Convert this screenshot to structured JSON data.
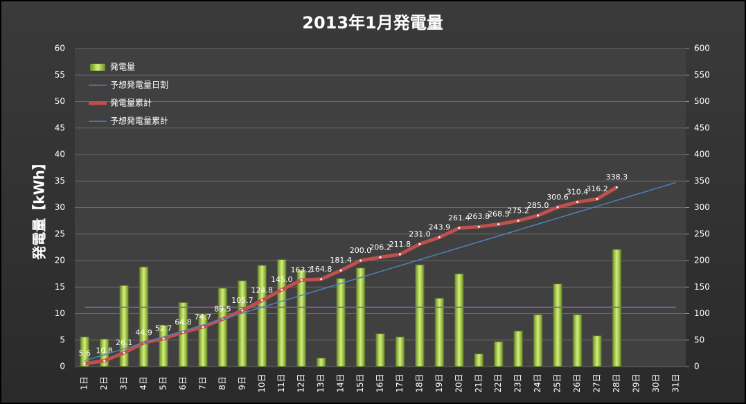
{
  "chart_data": {
    "type": "bar",
    "title": "2013年1月発電量",
    "y_label": "発電量【kWh】",
    "categories": [
      "1日",
      "2日",
      "3日",
      "4日",
      "5日",
      "6日",
      "7日",
      "8日",
      "9日",
      "10日",
      "11日",
      "12日",
      "13日",
      "14日",
      "15日",
      "16日",
      "17日",
      "18日",
      "19日",
      "20日",
      "21日",
      "22日",
      "23日",
      "24日",
      "25日",
      "26日",
      "27日",
      "28日",
      "29日",
      "30日",
      "31日"
    ],
    "ylim": [
      0,
      60
    ],
    "yticks": [
      0,
      5,
      10,
      15,
      20,
      25,
      30,
      35,
      40,
      45,
      50,
      55,
      60
    ],
    "y2lim": [
      0,
      600
    ],
    "y2ticks": [
      0,
      50,
      100,
      150,
      200,
      250,
      300,
      350,
      400,
      450,
      500,
      550,
      600
    ],
    "grid": true,
    "legend": "upper left",
    "series": [
      {
        "name": "発電量",
        "type": "bar",
        "color": "#9acd32",
        "values": [
          5.6,
          5.2,
          15.3,
          18.8,
          7.8,
          12.1,
          9.9,
          14.8,
          16.2,
          19.1,
          20.2,
          18.2,
          1.6,
          16.6,
          18.6,
          6.2,
          5.6,
          19.2,
          12.9,
          17.5,
          2.4,
          4.7,
          6.7,
          9.8,
          15.6,
          9.8,
          5.8,
          22.1,
          null,
          null,
          null
        ]
      },
      {
        "name": "予想発電量日割",
        "type": "line",
        "color": "#8064a2",
        "values": [
          11.2,
          11.2,
          11.2,
          11.2,
          11.2,
          11.2,
          11.2,
          11.2,
          11.2,
          11.2,
          11.2,
          11.2,
          11.2,
          11.2,
          11.2,
          11.2,
          11.2,
          11.2,
          11.2,
          11.2,
          11.2,
          11.2,
          11.2,
          11.2,
          11.2,
          11.2,
          11.2,
          11.2,
          11.2,
          11.2,
          11.2
        ]
      },
      {
        "name": "発電量累計",
        "type": "line",
        "axis": "y2",
        "color": "#c0504d",
        "values": [
          5.6,
          10.8,
          26.1,
          44.9,
          52.7,
          64.8,
          74.7,
          89.5,
          105.7,
          124.8,
          145.0,
          163.2,
          164.8,
          181.4,
          200.0,
          206.2,
          211.8,
          231.0,
          243.9,
          261.4,
          263.8,
          268.5,
          275.2,
          285.0,
          300.6,
          310.4,
          316.2,
          338.3,
          null,
          null,
          null
        ],
        "value_labels": [
          "5.6",
          "10.8",
          "26.1",
          "44.9",
          "52.7",
          "64.8",
          "74.7",
          "89.5",
          "105.7",
          "124.8",
          "145.0",
          "163.2",
          "164.8",
          "181.4",
          "200.0",
          "206.2",
          "211.8",
          "231.0",
          "243.9",
          "261.4",
          "263.8",
          "268.5",
          "275.2",
          "285.0",
          "300.6",
          "310.4",
          "316.2",
          "338.3",
          null,
          null,
          null
        ]
      },
      {
        "name": "予想発電量累計",
        "type": "line",
        "axis": "y2",
        "color": "#4f81bd",
        "values": [
          11.2,
          22.4,
          33.6,
          44.8,
          56,
          67.2,
          78.4,
          89.6,
          100.8,
          112,
          123.2,
          134.4,
          145.6,
          156.8,
          168,
          179.2,
          190.4,
          201.6,
          212.8,
          224,
          235.2,
          246.4,
          257.6,
          268.8,
          280,
          291.2,
          302.4,
          313.6,
          324.8,
          336,
          347.2
        ]
      }
    ]
  }
}
